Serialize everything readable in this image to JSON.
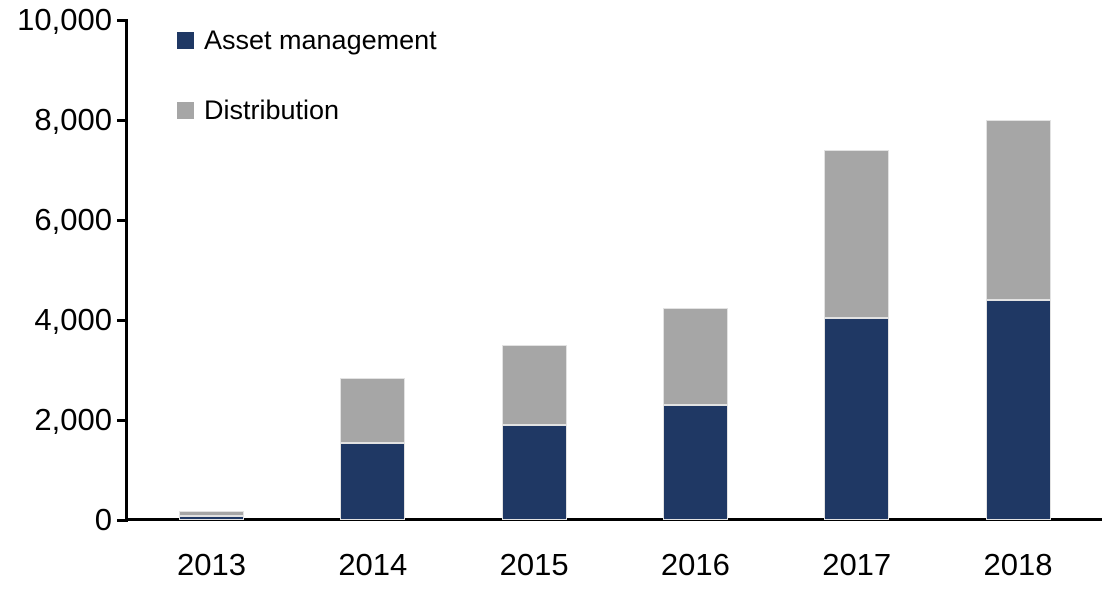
{
  "chart_data": {
    "type": "bar",
    "stacked": true,
    "title": "",
    "xlabel": "",
    "ylabel": "",
    "grid": false,
    "legend_position": "inside-top-left",
    "categories": [
      "2013",
      "2014",
      "2015",
      "2016",
      "2017",
      "2018"
    ],
    "series": [
      {
        "name": "Asset management",
        "color": "#1f3864",
        "values": [
          90,
          1550,
          1900,
          2300,
          4050,
          4400
        ]
      },
      {
        "name": "Distribution",
        "color": "#a6a6a6",
        "values": [
          90,
          1300,
          1600,
          1950,
          3350,
          3600
        ]
      }
    ],
    "totals": [
      180,
      2850,
      3500,
      4250,
      7400,
      8000
    ],
    "ylim": [
      0,
      10000
    ],
    "yticks": [
      {
        "value": 0,
        "label": "0"
      },
      {
        "value": 2000,
        "label": "2,000"
      },
      {
        "value": 4000,
        "label": "4,000"
      },
      {
        "value": 6000,
        "label": "6,000"
      },
      {
        "value": 8000,
        "label": "8,000"
      },
      {
        "value": 10000,
        "label": "10,000"
      }
    ],
    "colors": {
      "axis": "#000000",
      "text": "#000000",
      "background": "#ffffff",
      "bar_border": "#e2e2e2"
    }
  }
}
